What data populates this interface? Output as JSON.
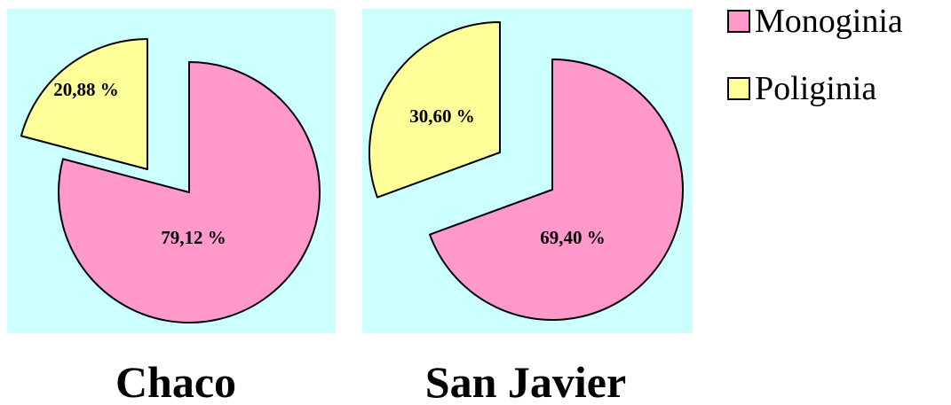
{
  "chart_data": [
    {
      "type": "pie",
      "title": "Chaco",
      "background": "#ccffff",
      "slices": [
        {
          "label": "Monoginia",
          "value": 79.12,
          "text": "79,12 %",
          "color": "#ff99cc",
          "exploded": false
        },
        {
          "label": "Poliginia",
          "value": 20.88,
          "text": "20,88 %",
          "color": "#ffff99",
          "exploded": true
        }
      ]
    },
    {
      "type": "pie",
      "title": "San Javier",
      "background": "#ccffff",
      "slices": [
        {
          "label": "Monoginia",
          "value": 69.4,
          "text": "69,40 %",
          "color": "#ff99cc",
          "exploded": false
        },
        {
          "label": "Poliginia",
          "value": 30.6,
          "text": "30,60 %",
          "color": "#ffff99",
          "exploded": true
        }
      ]
    }
  ],
  "legend": {
    "placement": "top-right",
    "items": [
      {
        "label": "Monoginia",
        "color": "#ff99cc"
      },
      {
        "label": "Poliginia",
        "color": "#ffff99"
      }
    ]
  }
}
